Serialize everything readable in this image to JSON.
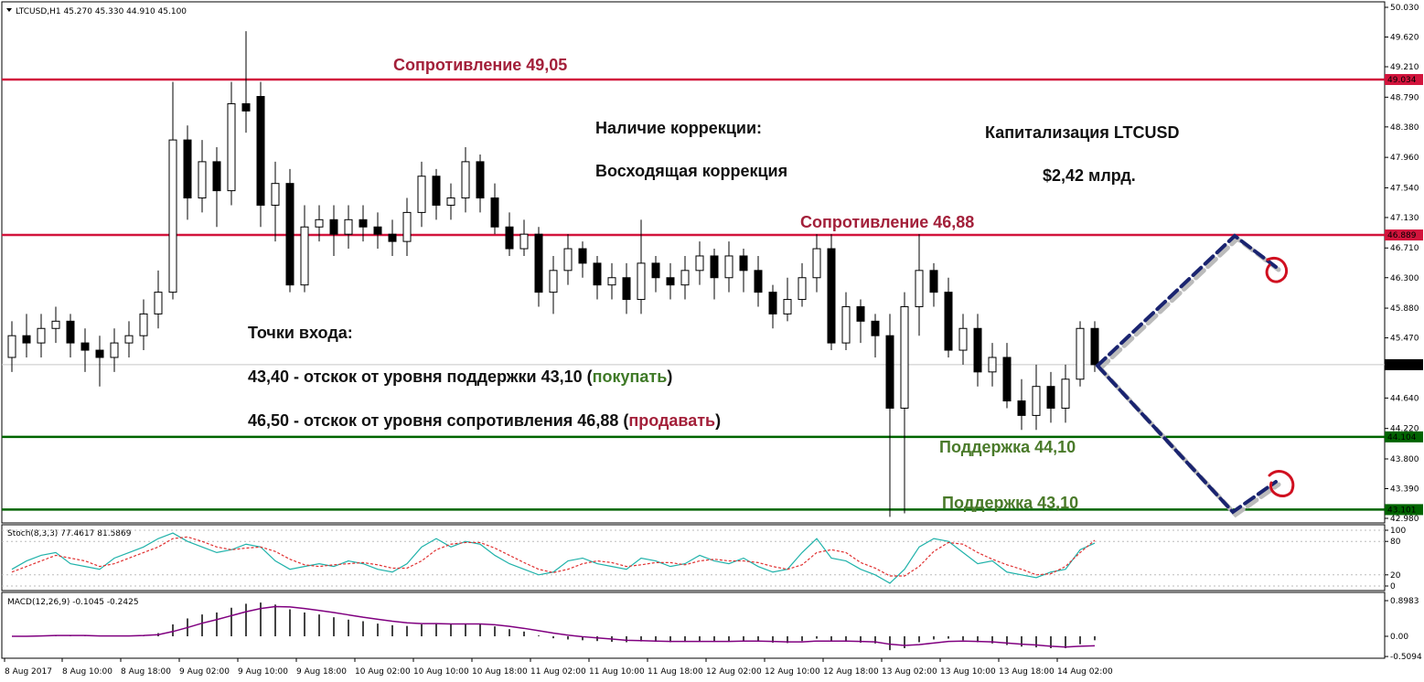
{
  "chart_data": [
    {
      "type": "candlestick",
      "title": "LTCUSD,H1  45.270 45.330 44.910 45.100",
      "open": [
        45.2,
        45.5,
        45.4,
        45.6,
        45.7,
        45.4,
        45.3,
        45.2,
        45.4,
        45.5,
        45.8,
        46.1,
        48.2,
        47.4,
        47.9,
        47.5,
        48.7,
        48.8,
        47.3,
        47.6,
        46.2,
        47.0,
        47.1,
        46.9,
        47.1,
        47.0,
        46.9,
        46.8,
        47.2,
        47.7,
        47.3,
        47.4,
        47.9,
        47.4,
        47.0,
        46.7,
        46.9,
        46.1,
        46.4,
        46.7,
        46.5,
        46.2,
        46.3,
        46.0,
        46.5,
        46.3,
        46.2,
        46.4,
        46.6,
        46.3,
        46.6,
        46.4,
        46.1,
        45.8,
        46.0,
        46.3,
        46.7,
        45.4,
        45.9,
        45.7,
        45.5,
        44.5,
        45.9,
        46.4,
        46.1,
        45.3,
        45.6,
        45.0,
        45.2,
        44.6,
        44.4,
        44.8,
        44.5,
        44.9,
        45.6
      ],
      "high": [
        45.7,
        45.8,
        45.8,
        45.9,
        45.8,
        45.6,
        45.5,
        45.6,
        45.7,
        46.0,
        46.4,
        49.0,
        48.4,
        48.2,
        48.1,
        49.0,
        49.7,
        49.0,
        47.9,
        47.8,
        47.3,
        47.3,
        47.3,
        47.3,
        47.3,
        47.2,
        47.1,
        47.4,
        47.9,
        47.8,
        47.6,
        48.1,
        48.0,
        47.6,
        47.2,
        47.1,
        47.0,
        46.6,
        46.9,
        46.8,
        46.6,
        46.5,
        46.5,
        47.1,
        46.6,
        46.5,
        46.6,
        46.8,
        46.7,
        46.8,
        46.7,
        46.6,
        46.2,
        46.3,
        46.5,
        46.9,
        46.9,
        46.1,
        46.0,
        45.8,
        45.8,
        46.1,
        46.9,
        46.5,
        46.3,
        45.8,
        45.8,
        45.4,
        45.4,
        44.9,
        45.1,
        45.0,
        45.1,
        45.7,
        45.7
      ],
      "low": [
        45.0,
        45.2,
        45.2,
        45.4,
        45.2,
        45.0,
        44.8,
        45.0,
        45.2,
        45.3,
        45.6,
        46.0,
        47.1,
        47.2,
        47.0,
        47.3,
        48.3,
        47.0,
        46.8,
        46.1,
        46.1,
        46.8,
        46.6,
        46.7,
        46.8,
        46.7,
        46.6,
        46.6,
        47.0,
        47.1,
        47.1,
        47.2,
        47.2,
        46.9,
        46.6,
        46.6,
        45.9,
        45.8,
        46.2,
        46.3,
        46.0,
        46.0,
        45.8,
        45.8,
        46.1,
        46.0,
        46.0,
        46.2,
        46.0,
        46.1,
        46.1,
        45.9,
        45.6,
        45.7,
        45.9,
        46.1,
        45.3,
        45.3,
        45.4,
        45.2,
        43.0,
        43.05,
        45.5,
        45.9,
        45.2,
        45.1,
        44.8,
        44.8,
        44.5,
        44.2,
        44.2,
        44.3,
        44.3,
        44.8,
        45.0
      ],
      "close": [
        45.5,
        45.4,
        45.6,
        45.7,
        45.4,
        45.3,
        45.2,
        45.4,
        45.5,
        45.8,
        46.1,
        48.2,
        47.4,
        47.9,
        47.5,
        48.7,
        48.6,
        47.3,
        47.6,
        46.2,
        47.0,
        47.1,
        46.9,
        47.1,
        47.0,
        46.9,
        46.8,
        47.2,
        47.7,
        47.3,
        47.4,
        47.9,
        47.4,
        47.0,
        46.7,
        46.9,
        46.1,
        46.4,
        46.7,
        46.5,
        46.2,
        46.3,
        46.0,
        46.5,
        46.3,
        46.2,
        46.4,
        46.6,
        46.3,
        46.6,
        46.4,
        46.1,
        45.8,
        46.0,
        46.3,
        46.7,
        45.4,
        45.9,
        45.7,
        45.5,
        44.5,
        45.9,
        46.4,
        46.1,
        45.3,
        45.6,
        45.0,
        45.2,
        44.6,
        44.4,
        44.8,
        44.5,
        44.9,
        45.6,
        45.1
      ],
      "time_labels": [
        "8 Aug 2017",
        "8 Aug 10:00",
        "8 Aug 18:00",
        "9 Aug 02:00",
        "9 Aug 10:00",
        "9 Aug 18:00",
        "10 Aug 02:00",
        "10 Aug 10:00",
        "10 Aug 18:00",
        "11 Aug 02:00",
        "11 Aug 10:00",
        "11 Aug 18:00",
        "12 Aug 02:00",
        "12 Aug 10:00",
        "12 Aug 18:00",
        "13 Aug 02:00",
        "13 Aug 10:00",
        "13 Aug 18:00",
        "14 Aug 02:00"
      ],
      "ylim": [
        42.917,
        50.093
      ],
      "yticks": [
        {
          "value": 50.03,
          "label": "50.030"
        },
        {
          "value": 49.62,
          "label": "49.620"
        },
        {
          "value": 49.21,
          "label": "49.210"
        },
        {
          "value": 48.79,
          "label": "48.790"
        },
        {
          "value": 48.38,
          "label": "48.380"
        },
        {
          "value": 47.96,
          "label": "47.960"
        },
        {
          "value": 47.54,
          "label": "47.540"
        },
        {
          "value": 47.13,
          "label": "47.130"
        },
        {
          "value": 46.71,
          "label": "46.710"
        },
        {
          "value": 46.3,
          "label": "46.300"
        },
        {
          "value": 45.88,
          "label": "45.880"
        },
        {
          "value": 45.47,
          "label": "45.470"
        },
        {
          "value": 44.64,
          "label": "44.640"
        },
        {
          "value": 44.22,
          "label": "44.220"
        },
        {
          "value": 43.8,
          "label": "43.800"
        },
        {
          "value": 43.39,
          "label": "43.390"
        },
        {
          "value": 42.98,
          "label": "42.980"
        }
      ],
      "levels": [
        {
          "value": 49.034,
          "color": "#d2143c",
          "label_color": "#d2143c"
        },
        {
          "value": 46.889,
          "color": "#d2143c",
          "label_color": "#d2143c"
        },
        {
          "value": 45.1,
          "label": "45.100",
          "color": "#c8c8c8",
          "label_color": "#000000"
        },
        {
          "value": 44.104,
          "color": "#006400",
          "label_color": "#006400"
        },
        {
          "value": 43.101,
          "color": "#006400",
          "label_color": "#006400"
        }
      ],
      "annotations": [
        {
          "text": "Сопротивление 49,05",
          "color": "#a3203a"
        },
        {
          "text": "Наличие коррекции:",
          "color": "#111111"
        },
        {
          "text": "Восходящая коррекция",
          "color": "#111111"
        },
        {
          "text": "Капитализация LTCUSD",
          "color": "#111111"
        },
        {
          "text": "$2,42 млрд.",
          "color": "#111111"
        },
        {
          "text": "Сопротивление 46,88",
          "color": "#a3203a"
        },
        {
          "text": "Точки входа:",
          "color": "#111111"
        },
        {
          "parts": [
            {
              "text": "43,40 - отскок от уровня поддержки 43,10 (",
              "color": "#111111"
            },
            {
              "text": "покупать",
              "color": "#3f7a27"
            },
            {
              "text": ")",
              "color": "#111111"
            }
          ]
        },
        {
          "parts": [
            {
              "text": "46,50 - отскок от уровня сопротивления 46,88 (",
              "color": "#111111"
            },
            {
              "text": "продавать",
              "color": "#a3203a"
            },
            {
              "text": ")",
              "color": "#111111"
            }
          ]
        },
        {
          "text": "Поддержка 44,10",
          "color": "#4a7a2a"
        },
        {
          "text": "Поддержка 43,10",
          "color": "#4a7a2a"
        }
      ]
    },
    {
      "type": "line",
      "title": "Stoch(8,3,3) 77.4617 81.5869",
      "series": [
        {
          "name": "Main",
          "color": "#20b2aa",
          "values": [
            30,
            45,
            55,
            60,
            40,
            35,
            30,
            50,
            60,
            70,
            85,
            95,
            80,
            70,
            60,
            65,
            75,
            70,
            45,
            30,
            35,
            40,
            35,
            45,
            40,
            30,
            25,
            40,
            70,
            85,
            70,
            80,
            75,
            55,
            40,
            30,
            20,
            25,
            45,
            50,
            40,
            35,
            30,
            50,
            45,
            35,
            40,
            55,
            45,
            40,
            50,
            35,
            25,
            30,
            60,
            85,
            50,
            45,
            30,
            20,
            5,
            30,
            70,
            85,
            80,
            60,
            40,
            45,
            25,
            20,
            15,
            25,
            30,
            65,
            77
          ]
        },
        {
          "name": "Signal",
          "color": "#e03030",
          "dashed": true,
          "values": [
            25,
            35,
            45,
            55,
            50,
            45,
            35,
            40,
            50,
            60,
            70,
            85,
            88,
            80,
            70,
            65,
            68,
            70,
            62,
            48,
            38,
            35,
            38,
            40,
            42,
            38,
            32,
            32,
            45,
            65,
            75,
            78,
            78,
            68,
            55,
            42,
            30,
            24,
            30,
            40,
            45,
            42,
            35,
            38,
            42,
            42,
            38,
            45,
            48,
            45,
            45,
            42,
            35,
            30,
            38,
            60,
            65,
            60,
            42,
            32,
            18,
            18,
            35,
            62,
            78,
            75,
            60,
            48,
            38,
            30,
            20,
            22,
            35,
            60,
            82
          ]
        }
      ],
      "ylim": [
        0,
        100
      ],
      "yticks": [
        100,
        80,
        20,
        0
      ]
    },
    {
      "type": "macd",
      "title": "MACD(12,26,9) -0.1045 -0.2425",
      "series": [
        {
          "name": "MACD",
          "color": "#444444",
          "values": [
            0,
            0,
            0.02,
            0.03,
            0.02,
            0.01,
            0,
            0,
            0.01,
            0.03,
            0.08,
            0.3,
            0.45,
            0.55,
            0.6,
            0.72,
            0.82,
            0.85,
            0.8,
            0.68,
            0.6,
            0.55,
            0.48,
            0.42,
            0.38,
            0.32,
            0.28,
            0.26,
            0.3,
            0.33,
            0.3,
            0.32,
            0.3,
            0.25,
            0.18,
            0.12,
            0.02,
            -0.05,
            -0.08,
            -0.1,
            -0.12,
            -0.14,
            -0.15,
            -0.13,
            -0.14,
            -0.15,
            -0.14,
            -0.12,
            -0.13,
            -0.12,
            -0.11,
            -0.13,
            -0.16,
            -0.17,
            -0.12,
            -0.06,
            -0.12,
            -0.14,
            -0.16,
            -0.18,
            -0.35,
            -0.3,
            -0.15,
            -0.08,
            -0.06,
            -0.1,
            -0.15,
            -0.18,
            -0.22,
            -0.26,
            -0.28,
            -0.3,
            -0.3,
            -0.2,
            -0.1
          ]
        },
        {
          "name": "Signal",
          "color": "#800080",
          "values": [
            0,
            0,
            0.01,
            0.02,
            0.02,
            0.02,
            0.01,
            0.01,
            0.01,
            0.02,
            0.04,
            0.12,
            0.22,
            0.33,
            0.42,
            0.52,
            0.62,
            0.7,
            0.75,
            0.74,
            0.7,
            0.65,
            0.6,
            0.54,
            0.48,
            0.43,
            0.38,
            0.34,
            0.32,
            0.32,
            0.31,
            0.31,
            0.31,
            0.29,
            0.25,
            0.2,
            0.14,
            0.08,
            0.03,
            -0.01,
            -0.04,
            -0.07,
            -0.1,
            -0.11,
            -0.12,
            -0.13,
            -0.13,
            -0.13,
            -0.13,
            -0.13,
            -0.12,
            -0.12,
            -0.13,
            -0.14,
            -0.14,
            -0.12,
            -0.12,
            -0.12,
            -0.13,
            -0.14,
            -0.2,
            -0.23,
            -0.21,
            -0.17,
            -0.13,
            -0.12,
            -0.13,
            -0.14,
            -0.17,
            -0.2,
            -0.22,
            -0.25,
            -0.27,
            -0.25,
            -0.24
          ]
        }
      ],
      "ylim": [
        -0.553,
        1.06
      ],
      "yticks": [
        0.8983,
        {
          "value": 0,
          "label": "0.00"
        },
        -0.5094
      ]
    }
  ]
}
